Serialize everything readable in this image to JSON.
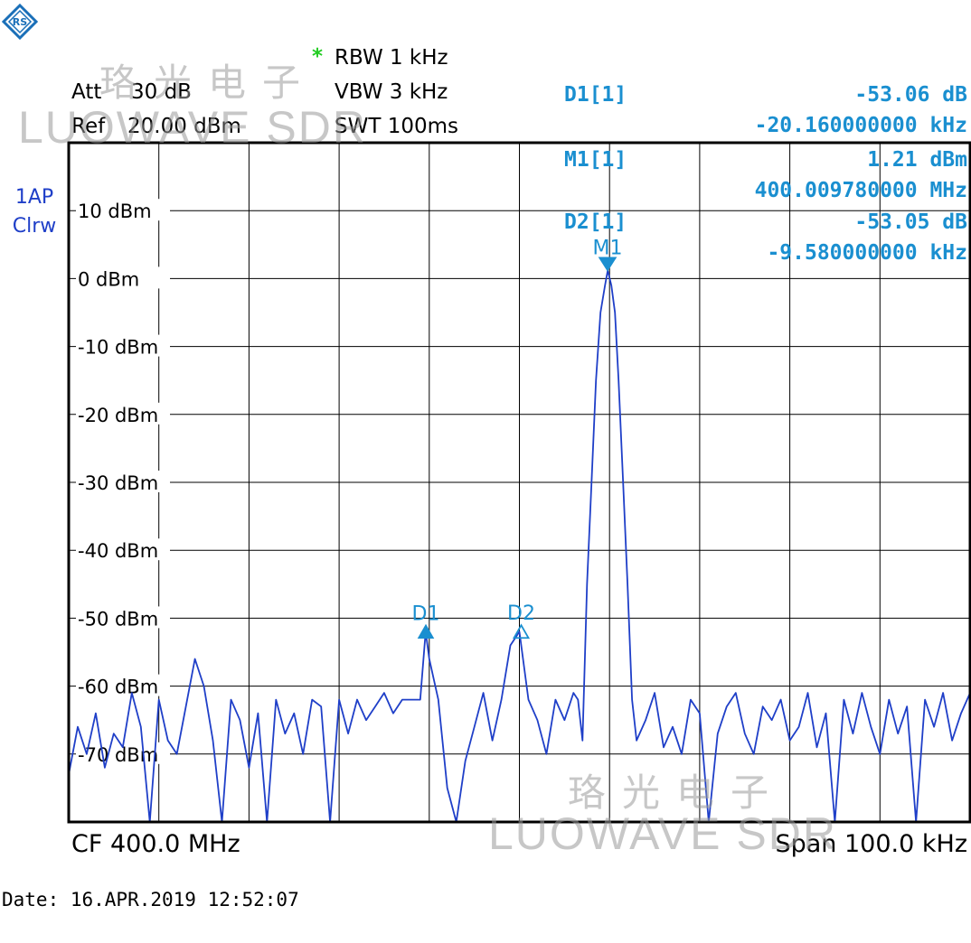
{
  "header": {
    "rbw_star": "*",
    "rbw": "RBW 1 kHz",
    "vbw": "VBW 3 kHz",
    "swt": "SWT 100ms",
    "att_label": "Att",
    "att_value": "30 dB",
    "ref_label": "Ref",
    "ref_value": "20.00 dBm"
  },
  "markers_table": [
    {
      "name": "D1[1]",
      "value": "-53.06 dB",
      "position": "-20.160000000 kHz"
    },
    {
      "name": "M1[1]",
      "value": "1.21 dBm",
      "position": "400.009780000 MHz"
    },
    {
      "name": "D2[1]",
      "value": "-53.05 dB",
      "position": "-9.580000000 kHz"
    }
  ],
  "trace": {
    "line1": "1AP",
    "line2": "Clrw"
  },
  "footer": {
    "cf": "CF 400.0 MHz",
    "span": "Span 100.0 kHz"
  },
  "date": "Date: 16.APR.2019  12:52:07",
  "watermark": {
    "chinese": "珞光电子",
    "latin": "LUOWAVE SDR"
  },
  "colors": {
    "trace": "#1f3fc8",
    "marker": "#1a8fd0",
    "grid": "#000000",
    "star": "#22cc22"
  },
  "chart_data": {
    "type": "line",
    "xlabel": "",
    "ylabel": "",
    "xlim": [
      -50,
      50
    ],
    "ylim": [
      -80,
      20
    ],
    "yticks": [
      {
        "value": 10,
        "label": "10 dBm"
      },
      {
        "value": 0,
        "label": "0 dBm"
      },
      {
        "value": -10,
        "label": "-10 dBm"
      },
      {
        "value": -20,
        "label": "-20 dBm"
      },
      {
        "value": -30,
        "label": "-30 dBm"
      },
      {
        "value": -40,
        "label": "-40 dBm"
      },
      {
        "value": -50,
        "label": "-50 dBm"
      },
      {
        "value": -60,
        "label": "-60 dBm"
      },
      {
        "value": -70,
        "label": "-70 dBm"
      }
    ],
    "grid": true,
    "markers": [
      {
        "label": "M1",
        "x": 9.78,
        "y": 1.21,
        "shape": "down-filled"
      },
      {
        "label": "D1",
        "x": -10.38,
        "y": -51.85,
        "shape": "up-filled"
      },
      {
        "label": "D2",
        "x": 0.2,
        "y": -51.84,
        "shape": "up-open"
      }
    ],
    "series": [
      {
        "x": [
          -50,
          -49,
          -48,
          -47,
          -46,
          -45,
          -44,
          -43,
          -42,
          -41,
          -40,
          -39,
          -38,
          -37,
          -36,
          -35,
          -34,
          -33,
          -32,
          -31,
          -30,
          -29,
          -28,
          -27,
          -26,
          -25,
          -24,
          -23,
          -22,
          -21,
          -20,
          -19,
          -18,
          -17,
          -16,
          -15,
          -14,
          -13,
          -12,
          -11,
          -10.4,
          -10,
          -9,
          -8,
          -7,
          -6,
          -5,
          -4,
          -3,
          -2,
          -1,
          0,
          1,
          2,
          3,
          4,
          5,
          6,
          6.5,
          7,
          7.5,
          8,
          8.5,
          9,
          9.5,
          9.8,
          10.2,
          10.6,
          11,
          11.5,
          12,
          12.5,
          13,
          14,
          15,
          16,
          17,
          18,
          19,
          20,
          21,
          22,
          23,
          24,
          25,
          26,
          27,
          28,
          29,
          30,
          31,
          32,
          33,
          34,
          35,
          36,
          37,
          38,
          39,
          40,
          41,
          42,
          43,
          44,
          45,
          46,
          47,
          48,
          49,
          50
        ],
        "y": [
          -73,
          -66,
          -70,
          -64,
          -72,
          -67,
          -69,
          -61,
          -66,
          -80,
          -62,
          -68,
          -70,
          -63,
          -56,
          -60,
          -68,
          -80,
          -62,
          -65,
          -72,
          -64,
          -80,
          -62,
          -67,
          -64,
          -70,
          -62,
          -63,
          -80,
          -62,
          -67,
          -62,
          -65,
          -63,
          -61,
          -64,
          -62,
          -62,
          -62,
          -52,
          -56,
          -62,
          -75,
          -80,
          -71,
          -66,
          -61,
          -68,
          -62,
          -54,
          -52,
          -62,
          -65,
          -70,
          -62,
          -65,
          -61,
          -62,
          -68,
          -45,
          -30,
          -15,
          -5,
          -1,
          1.2,
          -1,
          -5,
          -15,
          -30,
          -45,
          -62,
          -68,
          -65,
          -61,
          -69,
          -66,
          -70,
          -62,
          -64,
          -80,
          -67,
          -63,
          -61,
          -67,
          -70,
          -63,
          -65,
          -62,
          -68,
          -66,
          -61,
          -69,
          -64,
          -80,
          -62,
          -67,
          -61,
          -66,
          -70,
          -62,
          -67,
          -63,
          -80,
          -62,
          -66,
          -61,
          -68,
          -64,
          -61
        ]
      }
    ]
  }
}
